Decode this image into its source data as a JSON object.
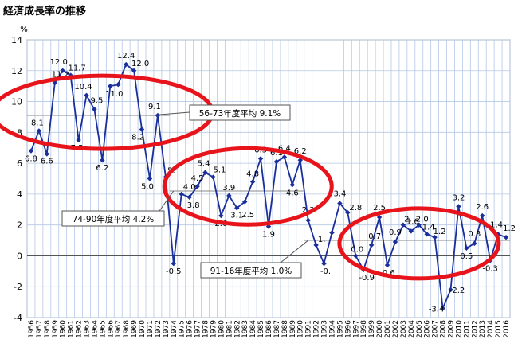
{
  "title": "経済成長率の推移",
  "chart_data": {
    "type": "line",
    "title": "経済成長率の推移",
    "ylabel": "%",
    "xlabel": "",
    "ylim": [
      -4,
      14
    ],
    "yticks": [
      -4,
      -2,
      0,
      2,
      4,
      6,
      8,
      10,
      12,
      14
    ],
    "grid": true,
    "x": [
      1956,
      1957,
      1958,
      1959,
      1960,
      1961,
      1962,
      1963,
      1964,
      1965,
      1966,
      1967,
      1968,
      1969,
      1970,
      1971,
      1972,
      1973,
      1974,
      1975,
      1976,
      1977,
      1978,
      1979,
      1980,
      1981,
      1982,
      1983,
      1984,
      1985,
      1986,
      1987,
      1988,
      1989,
      1990,
      1991,
      1992,
      1993,
      1994,
      1995,
      1996,
      1997,
      1998,
      1999,
      2000,
      2001,
      2002,
      2003,
      2004,
      2005,
      2006,
      2007,
      2008,
      2009,
      2010,
      2011,
      2012,
      2013,
      2014,
      2015,
      2016
    ],
    "series": [
      {
        "color": "#1a2f9c",
        "values": [
          6.8,
          8.1,
          6.6,
          11.2,
          12.0,
          11.7,
          7.5,
          10.4,
          9.5,
          6.2,
          11.0,
          11.1,
          12.4,
          12.0,
          8.2,
          5.0,
          9.1,
          5.1,
          -0.5,
          4.0,
          3.8,
          4.5,
          5.4,
          5.1,
          2.6,
          3.9,
          3.1,
          3.5,
          4.8,
          6.3,
          1.9,
          6.1,
          6.4,
          4.6,
          6.2,
          2.3,
          0.7,
          -0.5,
          1.5,
          3.4,
          2.8,
          0.0,
          -0.9,
          0.7,
          2.5,
          -0.6,
          0.9,
          2.0,
          1.6,
          2.0,
          1.4,
          1.2,
          -3.4,
          -2.2,
          3.2,
          0.5,
          0.8,
          2.6,
          -0.3,
          1.4,
          1.2
        ]
      }
    ],
    "data_labels": [
      "6.8",
      "8.1",
      "6.6",
      "11.2",
      "12.0",
      "11.7",
      "7.5",
      "10.4",
      "9.5",
      "6.2",
      "11.0",
      "",
      "12.4",
      "12.0",
      "8.2",
      "5.0",
      "9.1",
      "5.",
      "-0.5",
      "4.0",
      "3.8",
      "4.5",
      "5.4",
      "5.1",
      "2.6",
      "3.9",
      "3.1",
      "",
      "4.8",
      "6.3",
      "1.9",
      "6.1",
      "6.4",
      "4.6",
      "6.2",
      "2.3",
      "1.",
      "-0.",
      "",
      "3.4",
      "2.8",
      "0.0",
      "-0.9",
      "0.7",
      "2.5",
      "-0.6",
      "0.9",
      "2.",
      "1.6",
      "2.0",
      "1.4",
      "1.2",
      "-3.4",
      "-2.2",
      "3.2",
      "0.5",
      "0.8",
      "2.6",
      "-0.3",
      "1.4",
      "1.2"
    ],
    "averages": [
      {
        "label": "56-73年度平均 9.1%",
        "value": 9.1,
        "from": 1956,
        "to": 1973,
        "highlight_color": "#e8141b"
      },
      {
        "label": "74-90年度平均 4.2%",
        "value": 4.2,
        "from": 1974,
        "to": 1990,
        "highlight_color": "#e8141b"
      },
      {
        "label": "91-16年度平均 1.0%",
        "value": 1.0,
        "from": 1991,
        "to": 2016,
        "highlight_color": "#e8141b"
      }
    ],
    "extra_labels": [
      "2.5"
    ]
  }
}
